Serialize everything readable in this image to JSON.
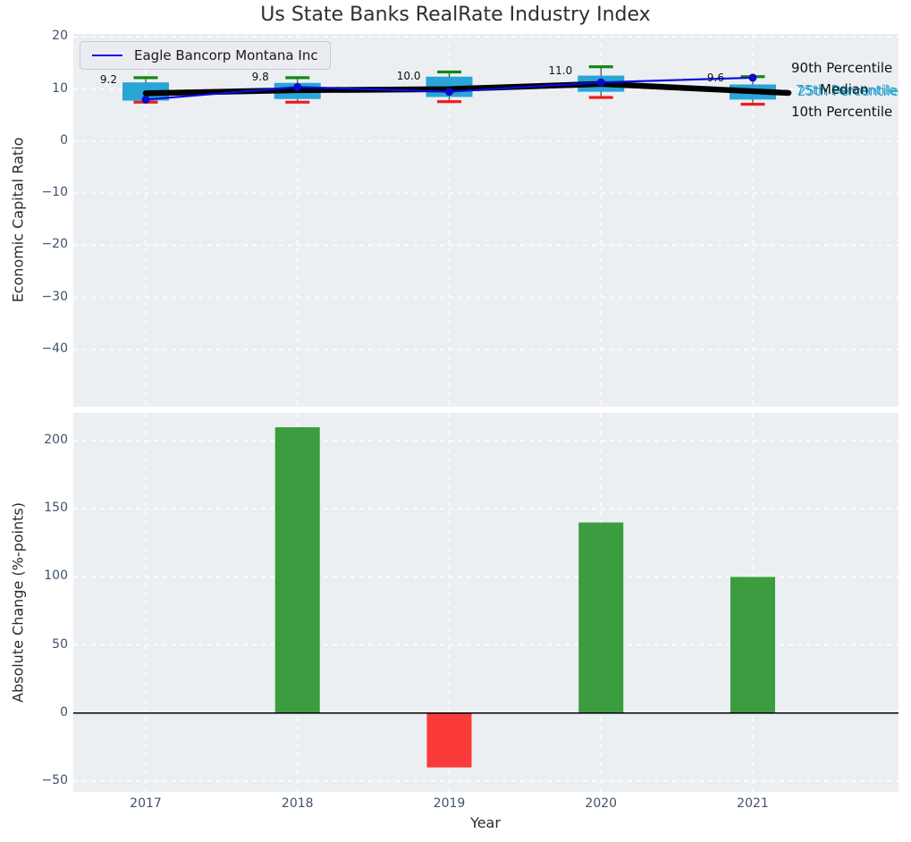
{
  "title": "Us State Banks RealRate Industry Index",
  "colors": {
    "axes_background": "#eceff2",
    "grid": "#ffffff",
    "box_fill": "#29a5d8",
    "cap_90th": "#118811",
    "cap_10th": "#ee1c1c",
    "whisker": "#444444",
    "median_line": "#000000",
    "company_line": "#0b0be0",
    "company_marker": "#0909c8",
    "bar_positive": "#3b9c40",
    "bar_negative": "#fb3a3a",
    "tick_label": "#42526b",
    "axis_label": "#2a2a2a",
    "percentile_label_black": "#111111",
    "percentile_label_cyan": "#2aa0cc",
    "zero_line": "#000000"
  },
  "chart_data": [
    {
      "type": "box",
      "title": "Us State Banks RealRate Industry Index",
      "ylabel": "Economic Capital Ratio",
      "categories": [
        "2017",
        "2018",
        "2019",
        "2020",
        "2021"
      ],
      "yticks": [
        20,
        10,
        0,
        -10,
        -20,
        -30,
        -40
      ],
      "ylim": [
        -51,
        20.6
      ],
      "grid": true,
      "legend": [
        "Eagle Bancorp Montana Inc"
      ],
      "legend_position": "upper left",
      "series": [
        {
          "name": "90th Percentile",
          "values": [
            12.2,
            12.2,
            13.3,
            14.3,
            12.4
          ]
        },
        {
          "name": "75th Percentile",
          "values": [
            11.3,
            11.2,
            12.4,
            12.6,
            10.9
          ]
        },
        {
          "name": "Median",
          "values": [
            9.2,
            9.8,
            10.0,
            11.0,
            9.6
          ]
        },
        {
          "name": "25th Percentile",
          "values": [
            7.8,
            8.1,
            8.5,
            9.5,
            8.0
          ]
        },
        {
          "name": "10th Percentile",
          "values": [
            7.5,
            7.5,
            7.6,
            8.4,
            7.1
          ]
        },
        {
          "name": "Eagle Bancorp Montana Inc",
          "values": [
            8.0,
            10.4,
            9.5,
            11.3,
            12.2
          ]
        }
      ],
      "median_annotations": [
        "9.2",
        "9.8",
        "10.0",
        "11.0",
        "9.6"
      ],
      "right_labels": [
        {
          "text": "90th Percentile",
          "color": "black"
        },
        {
          "text": "75th Percentile",
          "color": "cyan"
        },
        {
          "text": "25th Percentile",
          "color": "cyan"
        },
        {
          "text": "Median",
          "color": "black"
        },
        {
          "text": "10th Percentile",
          "color": "black"
        }
      ]
    },
    {
      "type": "bar",
      "xlabel": "Year",
      "ylabel": "Absolute Change (%-points)",
      "categories": [
        "2017",
        "2018",
        "2019",
        "2020",
        "2021"
      ],
      "values": [
        0,
        210,
        -40,
        140,
        100
      ],
      "yticks": [
        200,
        150,
        100,
        50,
        0,
        -50
      ],
      "ylim": [
        -58,
        220.5
      ],
      "grid": true
    }
  ]
}
